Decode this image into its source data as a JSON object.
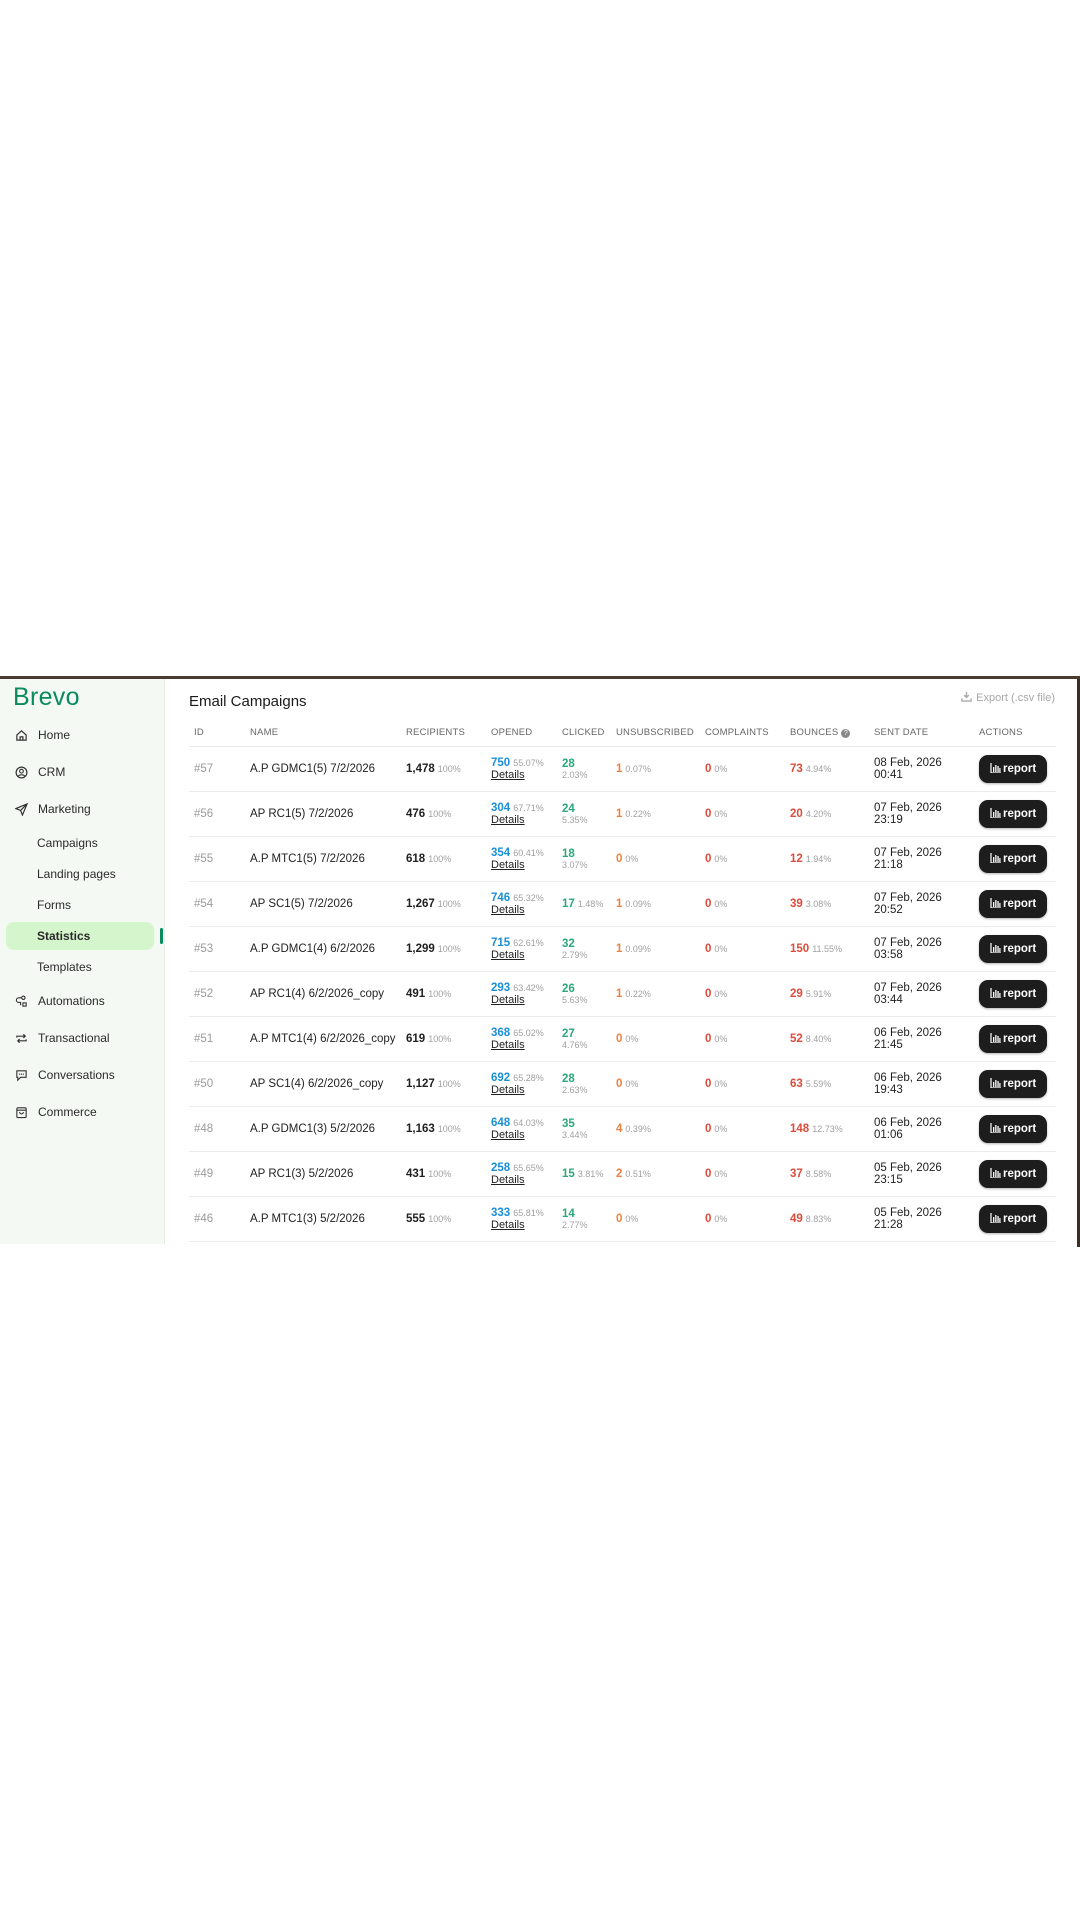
{
  "sidebar": {
    "logo": "Brevo",
    "items": [
      {
        "label": "Home",
        "icon": "home-icon"
      },
      {
        "label": "CRM",
        "icon": "user-circle-icon"
      },
      {
        "label": "Marketing",
        "icon": "send-icon"
      },
      {
        "label": "Automations",
        "icon": "automation-icon"
      },
      {
        "label": "Transactional",
        "icon": "repeat-icon"
      },
      {
        "label": "Conversations",
        "icon": "chat-icon"
      },
      {
        "label": "Commerce",
        "icon": "bag-icon"
      }
    ],
    "marketing_sub": [
      "Campaigns",
      "Landing pages",
      "Forms",
      "Statistics",
      "Templates"
    ],
    "active": "Statistics",
    "accent": "#0b8a5f"
  },
  "main": {
    "title": "Email Campaigns",
    "export_label": "Export (.csv file)",
    "columns": [
      "ID",
      "NAME",
      "RECIPIENTS",
      "OPENED",
      "CLICKED",
      "UNSUBSCRIBED",
      "COMPLAINTS",
      "BOUNCES",
      "SENT DATE",
      "ACTIONS"
    ],
    "details_label": "Details",
    "report_label": "report",
    "rows": [
      {
        "id": "#57",
        "name": "A.P GDMC1(5) 7/2/2026",
        "recipients": "1,478",
        "recipients_pct": "100%",
        "opened": "750",
        "opened_pct": "55.07%",
        "clicked": "28",
        "clicked_pct": "2.03%",
        "unsub": "1",
        "unsub_pct": "0.07%",
        "complaints": "0",
        "complaints_pct": "0%",
        "bounces": "73",
        "bounces_pct": "4.94%",
        "date": "08 Feb, 2026",
        "time": "00:41"
      },
      {
        "id": "#56",
        "name": "AP RC1(5) 7/2/2026",
        "recipients": "476",
        "recipients_pct": "100%",
        "opened": "304",
        "opened_pct": "67.71%",
        "clicked": "24",
        "clicked_pct": "5.35%",
        "unsub": "1",
        "unsub_pct": "0.22%",
        "complaints": "0",
        "complaints_pct": "0%",
        "bounces": "20",
        "bounces_pct": "4.20%",
        "date": "07 Feb, 2026",
        "time": "23:19"
      },
      {
        "id": "#55",
        "name": "A.P MTC1(5) 7/2/2026",
        "recipients": "618",
        "recipients_pct": "100%",
        "opened": "354",
        "opened_pct": "60.41%",
        "clicked": "18",
        "clicked_pct": "3.07%",
        "unsub": "0",
        "unsub_pct": "0%",
        "complaints": "0",
        "complaints_pct": "0%",
        "bounces": "12",
        "bounces_pct": "1.94%",
        "date": "07 Feb, 2026",
        "time": "21:18"
      },
      {
        "id": "#54",
        "name": "AP SC1(5) 7/2/2026",
        "recipients": "1,267",
        "recipients_pct": "100%",
        "opened": "746",
        "opened_pct": "65.32%",
        "clicked": "17",
        "clicked_pct": "1.48%",
        "unsub": "1",
        "unsub_pct": "0.09%",
        "complaints": "0",
        "complaints_pct": "0%",
        "bounces": "39",
        "bounces_pct": "3.08%",
        "date": "07 Feb, 2026",
        "time": "20:52"
      },
      {
        "id": "#53",
        "name": "A.P GDMC1(4) 6/2/2026",
        "recipients": "1,299",
        "recipients_pct": "100%",
        "opened": "715",
        "opened_pct": "62.61%",
        "clicked": "32",
        "clicked_pct": "2.79%",
        "unsub": "1",
        "unsub_pct": "0.09%",
        "complaints": "0",
        "complaints_pct": "0%",
        "bounces": "150",
        "bounces_pct": "11.55%",
        "date": "07 Feb, 2026",
        "time": "03:58"
      },
      {
        "id": "#52",
        "name": "AP RC1(4) 6/2/2026_copy",
        "recipients": "491",
        "recipients_pct": "100%",
        "opened": "293",
        "opened_pct": "63.42%",
        "clicked": "26",
        "clicked_pct": "5.63%",
        "unsub": "1",
        "unsub_pct": "0.22%",
        "complaints": "0",
        "complaints_pct": "0%",
        "bounces": "29",
        "bounces_pct": "5.91%",
        "date": "07 Feb, 2026",
        "time": "03:44"
      },
      {
        "id": "#51",
        "name": "A.P MTC1(4) 6/2/2026_copy",
        "recipients": "619",
        "recipients_pct": "100%",
        "opened": "368",
        "opened_pct": "65.02%",
        "clicked": "27",
        "clicked_pct": "4.76%",
        "unsub": "0",
        "unsub_pct": "0%",
        "complaints": "0",
        "complaints_pct": "0%",
        "bounces": "52",
        "bounces_pct": "8.40%",
        "date": "06 Feb, 2026",
        "time": "21:45"
      },
      {
        "id": "#50",
        "name": "AP SC1(4) 6/2/2026_copy",
        "recipients": "1,127",
        "recipients_pct": "100%",
        "opened": "692",
        "opened_pct": "65.28%",
        "clicked": "28",
        "clicked_pct": "2.63%",
        "unsub": "0",
        "unsub_pct": "0%",
        "complaints": "0",
        "complaints_pct": "0%",
        "bounces": "63",
        "bounces_pct": "5.59%",
        "date": "06 Feb, 2026",
        "time": "19:43"
      },
      {
        "id": "#48",
        "name": "A.P GDMC1(3) 5/2/2026",
        "recipients": "1,163",
        "recipients_pct": "100%",
        "opened": "648",
        "opened_pct": "64.03%",
        "clicked": "35",
        "clicked_pct": "3.44%",
        "unsub": "4",
        "unsub_pct": "0.39%",
        "complaints": "0",
        "complaints_pct": "0%",
        "bounces": "148",
        "bounces_pct": "12.73%",
        "date": "06 Feb, 2026",
        "time": "01:06"
      },
      {
        "id": "#49",
        "name": "AP RC1(3) 5/2/2026",
        "recipients": "431",
        "recipients_pct": "100%",
        "opened": "258",
        "opened_pct": "65.65%",
        "clicked": "15",
        "clicked_pct": "3.81%",
        "unsub": "2",
        "unsub_pct": "0.51%",
        "complaints": "0",
        "complaints_pct": "0%",
        "bounces": "37",
        "bounces_pct": "8.58%",
        "date": "05 Feb, 2026",
        "time": "23:15"
      },
      {
        "id": "#46",
        "name": "A.P MTC1(3) 5/2/2026",
        "recipients": "555",
        "recipients_pct": "100%",
        "opened": "333",
        "opened_pct": "65.81%",
        "clicked": "14",
        "clicked_pct": "2.77%",
        "unsub": "0",
        "unsub_pct": "0%",
        "complaints": "0",
        "complaints_pct": "0%",
        "bounces": "49",
        "bounces_pct": "8.83%",
        "date": "05 Feb, 2026",
        "time": "21:28"
      }
    ]
  }
}
